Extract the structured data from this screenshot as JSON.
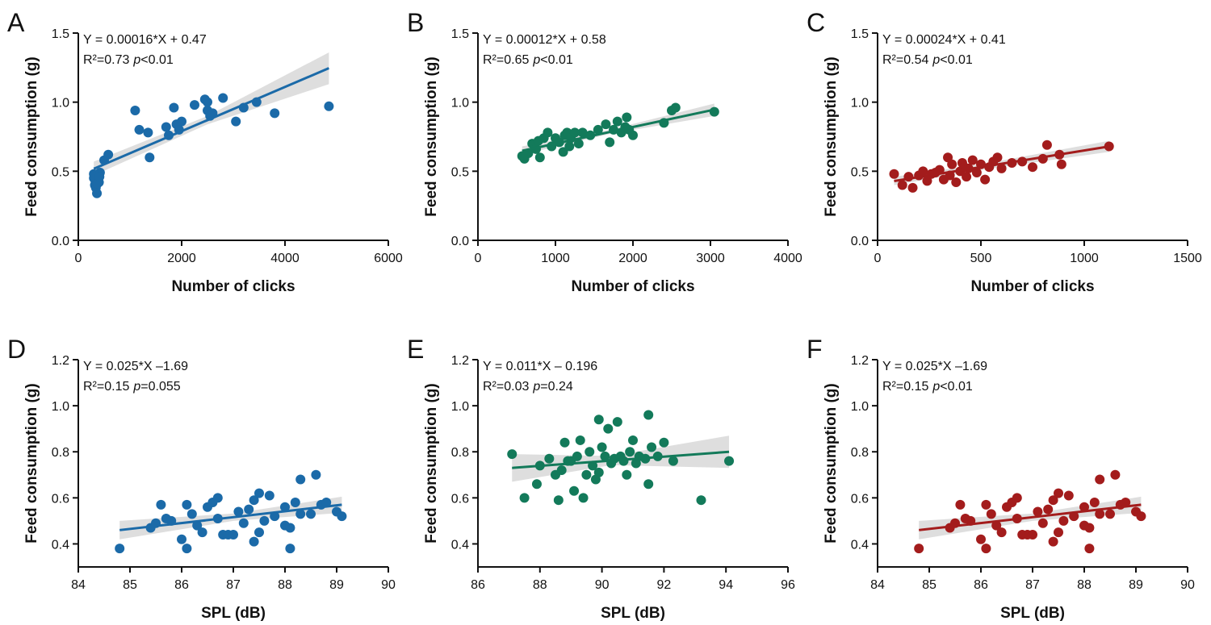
{
  "chart_data": [
    {
      "type": "scatter",
      "panel_label": "A",
      "equation": "Y = 0.00016*X + 0.47",
      "stats": [
        "R²=0.73",
        "p",
        "<0.01"
      ],
      "xlabel": "Number of clicks",
      "ylabel": "Feed consumption (g)",
      "color": "#1b6aa8",
      "x": [
        300,
        320,
        340,
        360,
        350,
        380,
        400,
        420,
        300,
        330,
        370,
        410,
        500,
        580,
        1100,
        1180,
        1350,
        1380,
        1700,
        1750,
        1850,
        1900,
        1950,
        2000,
        2250,
        2450,
        2500,
        2550,
        2500,
        2600,
        2800,
        3050,
        3200,
        3450,
        3800,
        4850
      ],
      "values": [
        0.45,
        0.4,
        0.38,
        0.34,
        0.44,
        0.47,
        0.42,
        0.49,
        0.48,
        0.43,
        0.41,
        0.46,
        0.58,
        0.62,
        0.94,
        0.8,
        0.78,
        0.6,
        0.82,
        0.76,
        0.96,
        0.84,
        0.8,
        0.86,
        0.98,
        1.02,
        0.94,
        0.9,
        1.0,
        0.92,
        1.03,
        0.86,
        0.96,
        1.0,
        0.92,
        0.97
      ],
      "fit": {
        "x": [
          300,
          2500,
          4850
        ],
        "y": [
          0.518,
          0.87,
          1.246
        ],
        "lower": [
          0.47,
          0.84,
          1.13
        ],
        "upper": [
          0.57,
          0.9,
          1.36
        ]
      },
      "xlim": [
        0,
        6000
      ],
      "ylim": [
        0,
        1.5
      ],
      "xticks": [
        0,
        2000,
        4000,
        6000
      ],
      "yticks": [
        {
          "value": 0,
          "label": "0.0"
        },
        0.5,
        {
          "value": 1,
          "label": "1.0"
        },
        1.5
      ]
    },
    {
      "type": "scatter",
      "panel_label": "B",
      "equation": "Y = 0.00012*X + 0.58",
      "stats": [
        "R²=0.65",
        "p",
        "<0.01"
      ],
      "xlabel": "Number of clicks",
      "ylabel": "Feed consumption (g)",
      "color": "#137a5a",
      "x": [
        570,
        600,
        650,
        700,
        750,
        780,
        800,
        850,
        900,
        950,
        1000,
        1050,
        1100,
        1120,
        1150,
        1180,
        1200,
        1250,
        1300,
        1350,
        1450,
        1550,
        1650,
        1700,
        1750,
        1800,
        1850,
        1900,
        1920,
        1950,
        2000,
        2400,
        2500,
        2550,
        3050
      ],
      "values": [
        0.61,
        0.59,
        0.63,
        0.7,
        0.66,
        0.72,
        0.6,
        0.74,
        0.78,
        0.68,
        0.74,
        0.71,
        0.64,
        0.76,
        0.78,
        0.68,
        0.74,
        0.78,
        0.7,
        0.78,
        0.76,
        0.8,
        0.84,
        0.71,
        0.8,
        0.86,
        0.78,
        0.82,
        0.89,
        0.8,
        0.76,
        0.85,
        0.94,
        0.96,
        0.93
      ],
      "fit": {
        "x": [
          570,
          1700,
          3050
        ],
        "y": [
          0.648,
          0.784,
          0.946
        ],
        "lower": [
          0.62,
          0.77,
          0.9
        ],
        "upper": [
          0.68,
          0.8,
          0.99
        ]
      },
      "xlim": [
        0,
        4000
      ],
      "ylim": [
        0,
        1.5
      ],
      "xticks": [
        0,
        1000,
        2000,
        3000,
        4000
      ],
      "yticks": [
        {
          "value": 0,
          "label": "0.0"
        },
        0.5,
        {
          "value": 1,
          "label": "1.0"
        },
        1.5
      ]
    },
    {
      "type": "scatter",
      "panel_label": "C",
      "equation": "Y = 0.00024*X + 0.41",
      "stats": [
        "R²=0.54",
        "p",
        "<0.01"
      ],
      "xlabel": "Number of clicks",
      "ylabel": "Feed consumption (g)",
      "color": "#a31c1c",
      "x": [
        80,
        120,
        150,
        170,
        200,
        220,
        240,
        260,
        280,
        300,
        320,
        340,
        350,
        360,
        380,
        400,
        410,
        420,
        430,
        440,
        460,
        480,
        500,
        520,
        540,
        560,
        580,
        600,
        650,
        700,
        750,
        800,
        820,
        880,
        890,
        1120
      ],
      "values": [
        0.48,
        0.4,
        0.46,
        0.38,
        0.47,
        0.5,
        0.43,
        0.48,
        0.49,
        0.51,
        0.44,
        0.6,
        0.47,
        0.55,
        0.42,
        0.5,
        0.56,
        0.53,
        0.46,
        0.52,
        0.58,
        0.49,
        0.55,
        0.44,
        0.53,
        0.57,
        0.6,
        0.52,
        0.56,
        0.57,
        0.53,
        0.59,
        0.69,
        0.62,
        0.55,
        0.68
      ],
      "fit": {
        "x": [
          80,
          500,
          1120
        ],
        "y": [
          0.429,
          0.53,
          0.679
        ],
        "lower": [
          0.4,
          0.51,
          0.64
        ],
        "upper": [
          0.46,
          0.55,
          0.72
        ]
      },
      "xlim": [
        0,
        1500
      ],
      "ylim": [
        0,
        1.5
      ],
      "xticks": [
        0,
        500,
        1000,
        1500
      ],
      "yticks": [
        {
          "value": 0,
          "label": "0.0"
        },
        0.5,
        {
          "value": 1,
          "label": "1.0"
        },
        1.5
      ]
    },
    {
      "type": "scatter",
      "panel_label": "D",
      "equation": "Y = 0.025*X –1.69",
      "stats": [
        "R²=0.15",
        "p",
        "=0.055"
      ],
      "xlabel": "SPL (dB)",
      "ylabel": "Feed consumption (g)",
      "color": "#1b6aa8",
      "x": [
        84.8,
        85.4,
        85.5,
        85.6,
        85.7,
        85.8,
        86.0,
        86.1,
        86.1,
        86.2,
        86.3,
        86.4,
        86.5,
        86.6,
        86.7,
        86.7,
        86.8,
        86.9,
        87.0,
        87.1,
        87.2,
        87.3,
        87.4,
        87.4,
        87.5,
        87.5,
        87.6,
        87.7,
        87.8,
        88.0,
        88.0,
        88.1,
        88.1,
        88.2,
        88.3,
        88.3,
        88.5,
        88.6,
        88.7,
        88.8,
        89.0,
        89.1
      ],
      "values": [
        0.38,
        0.47,
        0.49,
        0.57,
        0.51,
        0.5,
        0.42,
        0.38,
        0.57,
        0.53,
        0.48,
        0.45,
        0.56,
        0.58,
        0.6,
        0.51,
        0.44,
        0.44,
        0.44,
        0.54,
        0.49,
        0.55,
        0.41,
        0.59,
        0.62,
        0.45,
        0.5,
        0.61,
        0.52,
        0.48,
        0.56,
        0.47,
        0.38,
        0.58,
        0.53,
        0.68,
        0.53,
        0.7,
        0.57,
        0.58,
        0.54,
        0.52
      ],
      "fit": {
        "x": [
          84.8,
          87.0,
          89.1
        ],
        "y": [
          0.46,
          0.516,
          0.57
        ],
        "lower": [
          0.42,
          0.5,
          0.535
        ],
        "upper": [
          0.5,
          0.532,
          0.605
        ]
      },
      "xlim": [
        84,
        90
      ],
      "ylim": [
        0.3,
        1.2
      ],
      "xticks": [
        84,
        85,
        86,
        87,
        88,
        89,
        90
      ],
      "yticks": [
        0.4,
        0.6,
        0.8,
        {
          "value": 1,
          "label": "1.0"
        },
        1.2
      ]
    },
    {
      "type": "scatter",
      "panel_label": "E",
      "equation": "Y = 0.011*X – 0.196",
      "stats": [
        "R²=0.03",
        "p",
        "=0.24"
      ],
      "xlabel": "SPL (dB)",
      "ylabel": "Feed consumption (g)",
      "color": "#137a5a",
      "x": [
        87.1,
        87.5,
        87.9,
        88.0,
        88.3,
        88.5,
        88.6,
        88.7,
        88.8,
        88.9,
        89.0,
        89.1,
        89.2,
        89.3,
        89.4,
        89.5,
        89.6,
        89.7,
        89.8,
        89.9,
        89.9,
        90.0,
        90.1,
        90.2,
        90.3,
        90.4,
        90.5,
        90.6,
        90.7,
        90.8,
        90.9,
        91.0,
        91.1,
        91.2,
        91.4,
        91.5,
        91.5,
        91.6,
        91.8,
        92.0,
        92.3,
        93.2,
        94.1
      ],
      "values": [
        0.79,
        0.6,
        0.66,
        0.74,
        0.77,
        0.7,
        0.59,
        0.72,
        0.84,
        0.76,
        0.76,
        0.63,
        0.78,
        0.85,
        0.6,
        0.7,
        0.8,
        0.74,
        0.68,
        0.94,
        0.71,
        0.82,
        0.78,
        0.9,
        0.75,
        0.77,
        0.93,
        0.78,
        0.76,
        0.7,
        0.8,
        0.85,
        0.75,
        0.78,
        0.77,
        0.66,
        0.96,
        0.82,
        0.78,
        0.84,
        0.76,
        0.59,
        0.76
      ],
      "fit": {
        "x": [
          87.1,
          90.3,
          94.1
        ],
        "y": [
          0.73,
          0.762,
          0.8
        ],
        "lower": [
          0.67,
          0.742,
          0.73
        ],
        "upper": [
          0.79,
          0.782,
          0.87
        ]
      },
      "xlim": [
        86,
        96
      ],
      "ylim": [
        0.3,
        1.2
      ],
      "xticks": [
        86,
        88,
        90,
        92,
        94,
        96
      ],
      "yticks": [
        0.4,
        0.6,
        0.8,
        {
          "value": 1,
          "label": "1.0"
        },
        1.2
      ]
    },
    {
      "type": "scatter",
      "panel_label": "F",
      "equation": "Y = 0.025*X –1.69",
      "stats": [
        "R²=0.15",
        "p",
        "<0.01"
      ],
      "xlabel": "SPL (dB)",
      "ylabel": "Feed consumption (g)",
      "color": "#a31c1c",
      "x": [
        84.8,
        85.4,
        85.5,
        85.6,
        85.7,
        85.8,
        86.0,
        86.1,
        86.1,
        86.2,
        86.3,
        86.4,
        86.5,
        86.6,
        86.7,
        86.7,
        86.8,
        86.9,
        87.0,
        87.1,
        87.2,
        87.3,
        87.4,
        87.4,
        87.5,
        87.5,
        87.6,
        87.7,
        87.8,
        88.0,
        88.0,
        88.1,
        88.1,
        88.2,
        88.3,
        88.3,
        88.5,
        88.6,
        88.7,
        88.8,
        89.0,
        89.1
      ],
      "values": [
        0.38,
        0.47,
        0.49,
        0.57,
        0.51,
        0.5,
        0.42,
        0.38,
        0.57,
        0.53,
        0.48,
        0.45,
        0.56,
        0.58,
        0.6,
        0.51,
        0.44,
        0.44,
        0.44,
        0.54,
        0.49,
        0.55,
        0.41,
        0.59,
        0.62,
        0.45,
        0.5,
        0.61,
        0.52,
        0.48,
        0.56,
        0.47,
        0.38,
        0.58,
        0.53,
        0.68,
        0.53,
        0.7,
        0.57,
        0.58,
        0.54,
        0.52
      ],
      "fit": {
        "x": [
          84.8,
          87.0,
          89.1
        ],
        "y": [
          0.46,
          0.516,
          0.57
        ],
        "lower": [
          0.42,
          0.5,
          0.535
        ],
        "upper": [
          0.5,
          0.532,
          0.605
        ]
      },
      "xlim": [
        84,
        90
      ],
      "ylim": [
        0.3,
        1.2
      ],
      "xticks": [
        84,
        85,
        86,
        87,
        88,
        89,
        90
      ],
      "yticks": [
        0.4,
        0.6,
        0.8,
        {
          "value": 1,
          "label": "1.0"
        },
        1.2
      ]
    }
  ]
}
